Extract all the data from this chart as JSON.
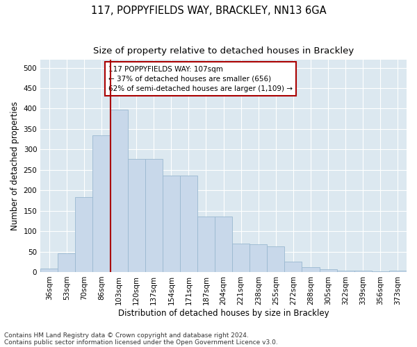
{
  "title": "117, POPPYFIELDS WAY, BRACKLEY, NN13 6GA",
  "subtitle": "Size of property relative to detached houses in Brackley",
  "xlabel": "Distribution of detached houses by size in Brackley",
  "ylabel": "Number of detached properties",
  "footer1": "Contains HM Land Registry data © Crown copyright and database right 2024.",
  "footer2": "Contains public sector information licensed under the Open Government Licence v3.0.",
  "categories": [
    "36sqm",
    "53sqm",
    "70sqm",
    "86sqm",
    "103sqm",
    "120sqm",
    "137sqm",
    "154sqm",
    "171sqm",
    "187sqm",
    "204sqm",
    "221sqm",
    "238sqm",
    "255sqm",
    "272sqm",
    "288sqm",
    "305sqm",
    "322sqm",
    "339sqm",
    "356sqm",
    "373sqm"
  ],
  "values": [
    9,
    46,
    183,
    335,
    398,
    277,
    277,
    236,
    236,
    135,
    135,
    70,
    68,
    62,
    26,
    11,
    6,
    4,
    3,
    2,
    4
  ],
  "bar_color": "#c8d8ea",
  "bar_edge_color": "#9ab8d0",
  "vline_color": "#aa0000",
  "vline_x_index": 4,
  "annotation_text": "117 POPPYFIELDS WAY: 107sqm\n← 37% of detached houses are smaller (656)\n62% of semi-detached houses are larger (1,109) →",
  "annotation_box_edgecolor": "#aa0000",
  "ylim": [
    0,
    520
  ],
  "yticks": [
    0,
    50,
    100,
    150,
    200,
    250,
    300,
    350,
    400,
    450,
    500
  ],
  "figure_bg": "#ffffff",
  "axes_bg": "#dce8f0",
  "grid_color": "#ffffff",
  "title_fontsize": 10.5,
  "subtitle_fontsize": 9.5,
  "axis_label_fontsize": 8.5,
  "tick_fontsize": 7.5,
  "annotation_fontsize": 7.5,
  "footer_fontsize": 6.5
}
